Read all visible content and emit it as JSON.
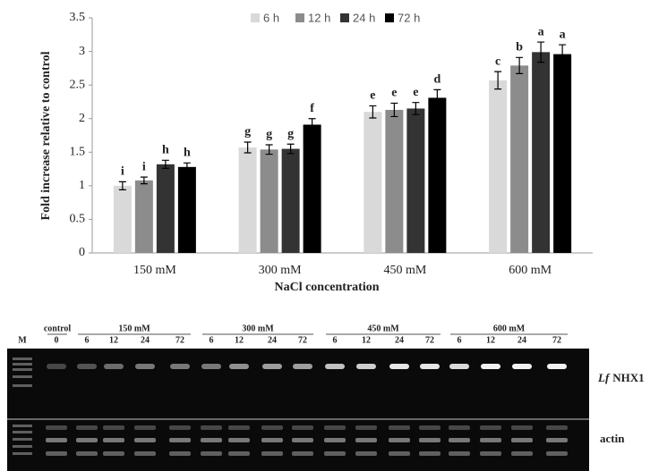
{
  "chart_data": {
    "type": "bar",
    "y_label": "Fold increase relative to control",
    "x_label": "NaCl concentration",
    "categories": [
      "150 mM",
      "300 mM",
      "450 mM",
      "600 mM"
    ],
    "series": [
      {
        "name": "6 h",
        "color": "#d9d9d9",
        "values": [
          1.0,
          1.57,
          2.1,
          2.57
        ],
        "errors": [
          0.06,
          0.08,
          0.09,
          0.13
        ],
        "labels": [
          "i",
          "g",
          "e",
          "c"
        ]
      },
      {
        "name": "12 h",
        "color": "#8c8c8c",
        "values": [
          1.08,
          1.54,
          2.13,
          2.79
        ],
        "errors": [
          0.05,
          0.07,
          0.1,
          0.12
        ],
        "labels": [
          "i",
          "g",
          "e",
          "b"
        ]
      },
      {
        "name": "24 h",
        "color": "#333333",
        "values": [
          1.32,
          1.55,
          2.15,
          2.99
        ],
        "errors": [
          0.06,
          0.07,
          0.09,
          0.15
        ],
        "labels": [
          "h",
          "g",
          "e",
          "a"
        ]
      },
      {
        "name": "72 h",
        "color": "#000000",
        "values": [
          1.28,
          1.91,
          2.31,
          2.96
        ],
        "errors": [
          0.06,
          0.09,
          0.12,
          0.14
        ],
        "labels": [
          "h",
          "f",
          "d",
          "a"
        ]
      }
    ],
    "ylim": [
      0,
      3.5
    ],
    "yticks": [
      0,
      0.5,
      1,
      1.5,
      2,
      2.5,
      3,
      3.5
    ],
    "grid": false,
    "legend": "top"
  },
  "gel": {
    "marker": "M",
    "species": "Lf",
    "gene": "NHX1",
    "reference": "actin",
    "groups": [
      {
        "label": "control",
        "lanes": [
          "0"
        ]
      },
      {
        "label": "150 mM",
        "lanes": [
          "6",
          "12",
          "24",
          "72"
        ]
      },
      {
        "label": "300 mM",
        "lanes": [
          "6",
          "12",
          "24",
          "72"
        ]
      },
      {
        "label": "450 mM",
        "lanes": [
          "6",
          "12",
          "24",
          "72"
        ]
      },
      {
        "label": "600 mM",
        "lanes": [
          "6",
          "12",
          "24",
          "72"
        ]
      }
    ]
  }
}
